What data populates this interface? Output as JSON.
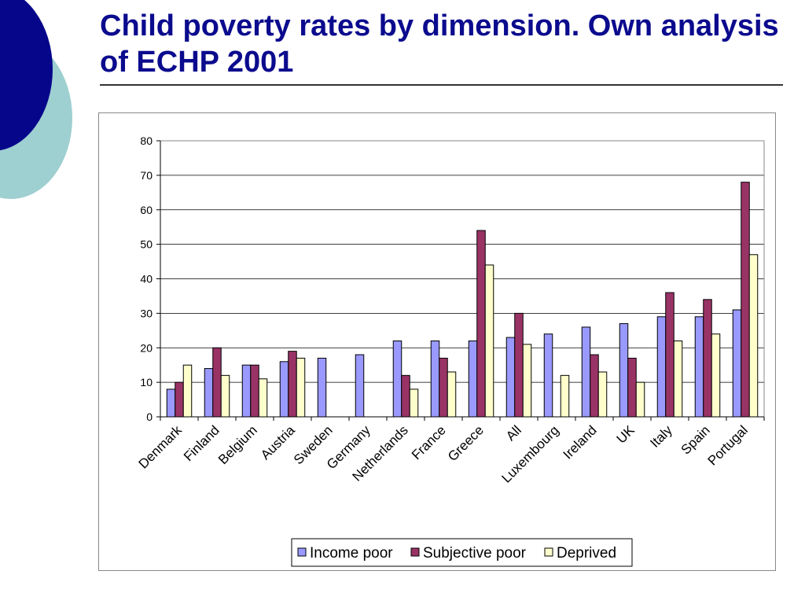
{
  "slide": {
    "title": "Child poverty rates by dimension. Own analysis of ECHP 2001"
  },
  "colors": {
    "title": "#0b0b8e",
    "deco_dark": "#06068a",
    "deco_light": "#9ecfd1"
  },
  "chart_data": {
    "type": "bar",
    "title": "",
    "xlabel": "",
    "ylabel": "",
    "ylim": [
      0,
      80
    ],
    "yticks": [
      0,
      10,
      20,
      30,
      40,
      50,
      60,
      70,
      80
    ],
    "grid": true,
    "legend_position": "bottom",
    "categories": [
      "Denmark",
      "Finland",
      "Belgium",
      "Austria",
      "Sweden",
      "Germany",
      "Netherlands",
      "France",
      "Greece",
      "All",
      "Luxembourg",
      "Ireland",
      "UK",
      "Italy",
      "Spain",
      "Portugal"
    ],
    "series": [
      {
        "name": "Income poor",
        "color": "#9999ff",
        "values": [
          8,
          14,
          15,
          16,
          17,
          18,
          22,
          22,
          22,
          23,
          24,
          26,
          27,
          29,
          29,
          31
        ]
      },
      {
        "name": "Subjective poor",
        "color": "#993366",
        "values": [
          10,
          20,
          15,
          19,
          null,
          null,
          12,
          17,
          54,
          30,
          null,
          18,
          17,
          36,
          34,
          68
        ]
      },
      {
        "name": "Deprived",
        "color": "#ffffcc",
        "values": [
          15,
          12,
          11,
          17,
          null,
          null,
          8,
          13,
          44,
          21,
          12,
          13,
          10,
          22,
          24,
          47
        ]
      }
    ]
  }
}
